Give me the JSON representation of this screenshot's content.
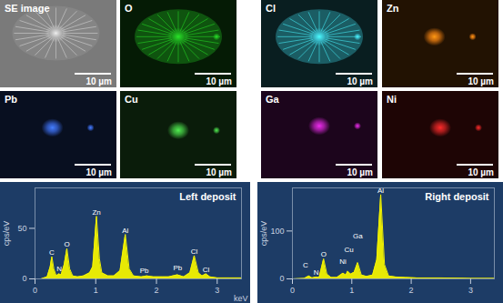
{
  "images": [
    {
      "label": "SE image",
      "scale_bar": "10 µm",
      "color": "#c8c8c8"
    },
    {
      "label": "O",
      "scale_bar": "10 µm",
      "color": "#22c022"
    },
    {
      "label": "Cl",
      "scale_bar": "10 µm",
      "color": "#40d4e4"
    },
    {
      "label": "Zn",
      "scale_bar": "10 µm",
      "color": "#f08010"
    },
    {
      "label": "Pb",
      "scale_bar": "10 µm",
      "color": "#3a6ae6"
    },
    {
      "label": "Cu",
      "scale_bar": "10 µm",
      "color": "#44c844"
    },
    {
      "label": "Ga",
      "scale_bar": "10 µm",
      "color": "#c824c8"
    },
    {
      "label": "Ni",
      "scale_bar": "10 µm",
      "color": "#d82424"
    }
  ],
  "chart_data": [
    {
      "type": "area",
      "title": "Left deposit",
      "color": "#f2f200",
      "x": [
        0,
        0.1,
        0.2,
        0.25,
        0.277,
        0.31,
        0.35,
        0.392,
        0.43,
        0.48,
        0.525,
        0.57,
        0.62,
        0.7,
        0.8,
        0.9,
        0.95,
        1.012,
        1.06,
        1.1,
        1.2,
        1.3,
        1.4,
        1.487,
        1.55,
        1.62,
        1.75,
        1.84,
        1.95,
        2.1,
        2.2,
        2.345,
        2.45,
        2.55,
        2.622,
        2.69,
        2.75,
        2.815,
        2.88,
        3.0,
        3.2,
        3.4
      ],
      "values": [
        0,
        0,
        2,
        12,
        22,
        10,
        3,
        5,
        4,
        14,
        30,
        10,
        3,
        2,
        3,
        6,
        12,
        62,
        20,
        6,
        3,
        3,
        8,
        44,
        10,
        3,
        2,
        3,
        2,
        2,
        2,
        4,
        2,
        6,
        23,
        6,
        3,
        5,
        2,
        1,
        1,
        1
      ],
      "xlim": [
        0,
        3.4
      ],
      "xticks": [
        0,
        1,
        2,
        3
      ],
      "ylim": [
        0,
        90
      ],
      "yticks": [
        0,
        50
      ],
      "x_label": "keV",
      "y_label": "cps/eV",
      "annotations": [
        {
          "text": "C",
          "x": 0.277,
          "y": 23
        },
        {
          "text": "N",
          "x": 0.4,
          "y": 7
        },
        {
          "text": "O",
          "x": 0.525,
          "y": 31
        },
        {
          "text": "Zn",
          "x": 1.012,
          "y": 63
        },
        {
          "text": "Al",
          "x": 1.487,
          "y": 45
        },
        {
          "text": "Pb",
          "x": 1.8,
          "y": 5
        },
        {
          "text": "Pb",
          "x": 2.35,
          "y": 8
        },
        {
          "text": "Cl",
          "x": 2.622,
          "y": 24
        },
        {
          "text": "Cl",
          "x": 2.815,
          "y": 6
        }
      ]
    },
    {
      "type": "area",
      "title": "Right deposit",
      "color": "#f2f200",
      "x": [
        0,
        0.2,
        0.277,
        0.33,
        0.392,
        0.45,
        0.525,
        0.58,
        0.65,
        0.75,
        0.851,
        0.9,
        0.93,
        0.98,
        1.04,
        1.098,
        1.16,
        1.25,
        1.35,
        1.42,
        1.487,
        1.55,
        1.62,
        1.74,
        1.9,
        2.1,
        2.5,
        3.0,
        3.4
      ],
      "values": [
        0,
        1,
        6,
        2,
        4,
        3,
        42,
        10,
        3,
        3,
        12,
        8,
        16,
        10,
        14,
        34,
        8,
        5,
        8,
        40,
        176,
        30,
        6,
        4,
        3,
        2,
        2,
        1,
        1
      ],
      "xlim": [
        0,
        3.4
      ],
      "xticks": [
        0,
        1,
        2,
        3
      ],
      "ylim": [
        0,
        190
      ],
      "yticks": [
        0,
        100
      ],
      "y_label": "cps/eV",
      "annotations": [
        {
          "text": "C",
          "x": 0.22,
          "y": 22
        },
        {
          "text": "N",
          "x": 0.4,
          "y": 6
        },
        {
          "text": "O",
          "x": 0.525,
          "y": 45
        },
        {
          "text": "Ni",
          "x": 0.85,
          "y": 30
        },
        {
          "text": "Cu",
          "x": 0.95,
          "y": 55
        },
        {
          "text": "Ga",
          "x": 1.1,
          "y": 82
        },
        {
          "text": "Al",
          "x": 1.487,
          "y": 178
        }
      ]
    }
  ]
}
